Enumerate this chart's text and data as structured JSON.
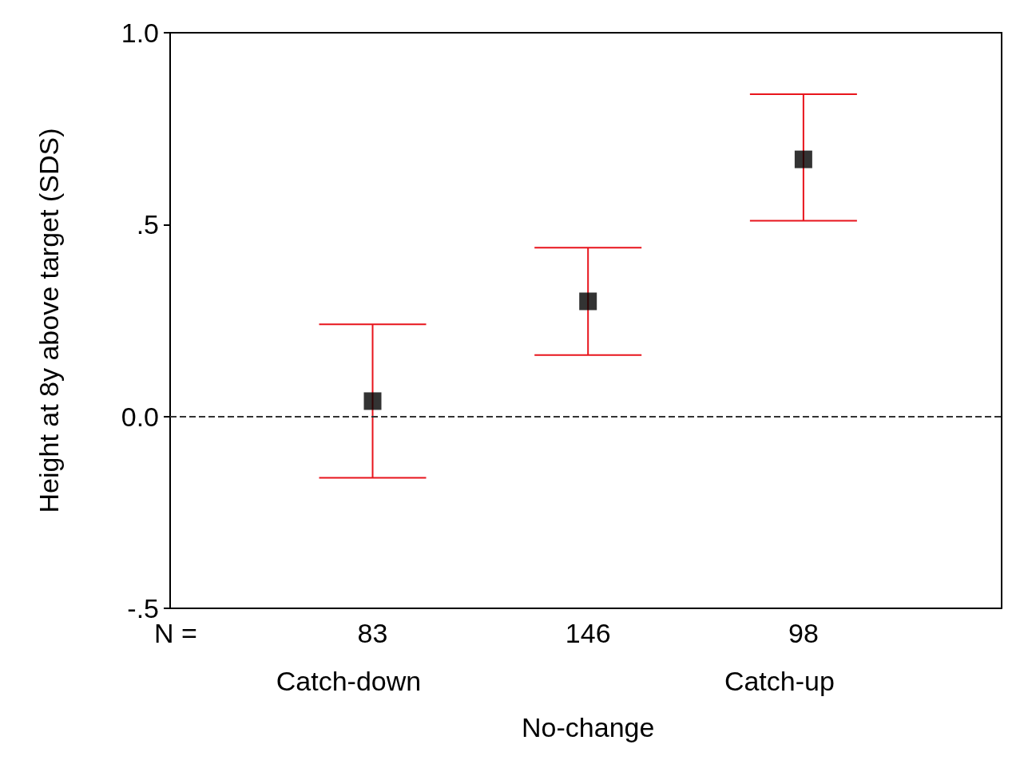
{
  "chart_data": {
    "type": "scatter",
    "ylabel": "Height at 8y above target (SDS)",
    "categories": [
      "83",
      "146",
      "98"
    ],
    "series": [
      {
        "color": "#000000",
        "values": [
          0.04,
          0.3,
          0.67
        ],
        "errors": [
          [
            -0.16,
            0.24
          ],
          [
            0.16,
            0.44
          ],
          [
            0.51,
            0.84
          ]
        ]
      }
    ],
    "marker": "square",
    "grid": false,
    "ylim": [
      -0.5,
      1.0
    ],
    "yticks": [
      {
        "value": -0.5,
        "label": "-.5"
      },
      {
        "value": 0,
        "label": "0.0"
      },
      {
        "value": 0.5,
        "label": ".5"
      },
      {
        "value": 1.0,
        "label": "1.0"
      }
    ],
    "ref_lines": [
      {
        "axis": "y",
        "value": 0,
        "color": "#333333",
        "line_style": "dashed"
      }
    ],
    "annotations": [
      "N =",
      "Catch-down",
      "No-change",
      "Catch-up"
    ]
  }
}
